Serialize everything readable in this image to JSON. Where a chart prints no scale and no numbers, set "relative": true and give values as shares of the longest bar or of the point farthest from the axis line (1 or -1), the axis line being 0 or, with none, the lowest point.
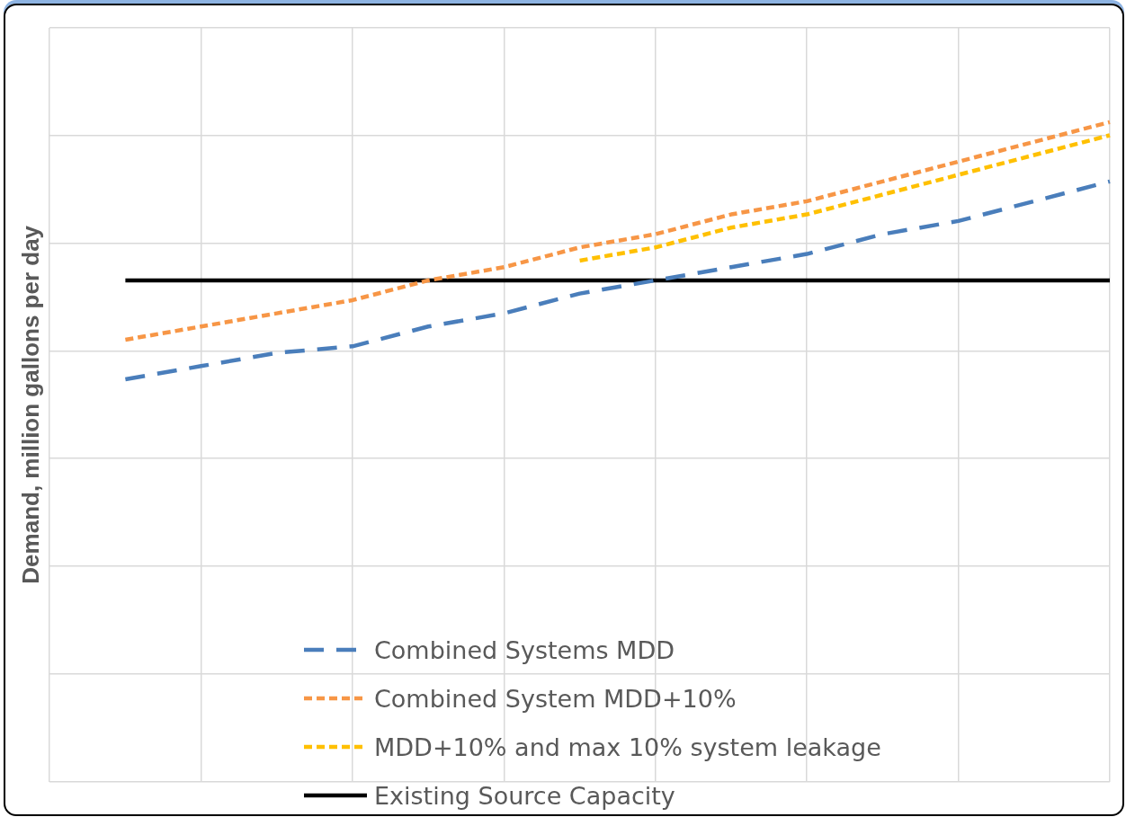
{
  "chart_data": {
    "type": "line",
    "ylabel": "Demand, million gallons per day",
    "relative": true,
    "grid": true,
    "legend": "bottom",
    "marker": "none",
    "categories": [
      null,
      null,
      null,
      null,
      null,
      null,
      null,
      null,
      null,
      null,
      null,
      null,
      null,
      null,
      null
    ],
    "series": [
      {
        "name": "Combined Systems MDD",
        "color": "#4a7ebb",
        "line_style": "dashed",
        "values": [
          null,
          0.61,
          0.63,
          0.65,
          0.66,
          0.69,
          0.71,
          0.74,
          0.76,
          0.78,
          0.8,
          0.83,
          0.85,
          0.88,
          0.91
        ]
      },
      {
        "name": "Combined System MDD+10%",
        "color": "#f79646",
        "line_style": "dotted",
        "values": [
          null,
          0.67,
          0.69,
          0.71,
          0.73,
          0.76,
          0.78,
          0.81,
          0.83,
          0.86,
          0.88,
          0.91,
          0.94,
          0.97,
          1
        ]
      },
      {
        "name": "MDD+10% and max 10% system leakage",
        "color": "#ffc000",
        "line_style": "dotted",
        "values": [
          null,
          null,
          null,
          null,
          null,
          null,
          null,
          0.79,
          0.81,
          0.84,
          0.86,
          0.89,
          0.92,
          0.95,
          0.98
        ]
      },
      {
        "name": "Existing Source Capacity",
        "color": "#000000",
        "line_style": "solid",
        "values": [
          null,
          0.76,
          0.76,
          0.76,
          0.76,
          0.76,
          0.76,
          0.76,
          0.76,
          0.76,
          0.76,
          0.76,
          0.76,
          0.76,
          0.76
        ]
      }
    ]
  }
}
